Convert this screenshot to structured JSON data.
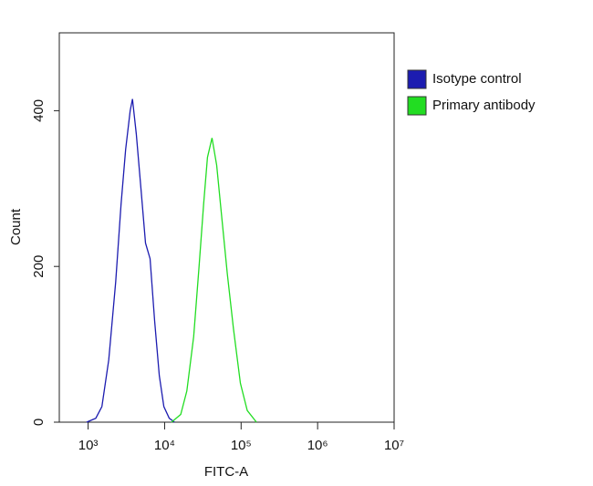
{
  "chart_data": {
    "type": "line",
    "xlabel": "FITC-A",
    "ylabel": "Count",
    "xscale": "log",
    "xlim": [
      420,
      10000000
    ],
    "xticks": [
      {
        "value": 1000,
        "label": "10³"
      },
      {
        "value": 10000,
        "label": "10⁴"
      },
      {
        "value": 100000,
        "label": "10⁵"
      },
      {
        "value": 1000000,
        "label": "10⁶"
      },
      {
        "value": 10000000,
        "label": "10⁷"
      }
    ],
    "ylim": [
      0,
      500
    ],
    "yticks": [
      0,
      200,
      400
    ],
    "legend": "outside-right",
    "series": [
      {
        "name": "Isotype control",
        "color": "#1c1cb0",
        "x": [
          955,
          1259,
          1514,
          1862,
          2291,
          2692,
          3090,
          3548,
          3802,
          4266,
          4898,
          5623,
          6457,
          7413,
          8511,
          9772,
          11482,
          13490
        ],
        "values": [
          0,
          5,
          20,
          80,
          180,
          280,
          350,
          400,
          415,
          370,
          300,
          230,
          210,
          130,
          60,
          20,
          5,
          0
        ]
      },
      {
        "name": "Primary antibody",
        "color": "#22dd22",
        "x": [
          12303,
          16218,
          19498,
          23988,
          28184,
          32359,
          36308,
          41687,
          47863,
          54954,
          66069,
          79433,
          97724,
          120226,
          158489
        ],
        "values": [
          0,
          10,
          40,
          110,
          200,
          280,
          340,
          365,
          330,
          270,
          190,
          120,
          50,
          15,
          0
        ]
      }
    ]
  }
}
